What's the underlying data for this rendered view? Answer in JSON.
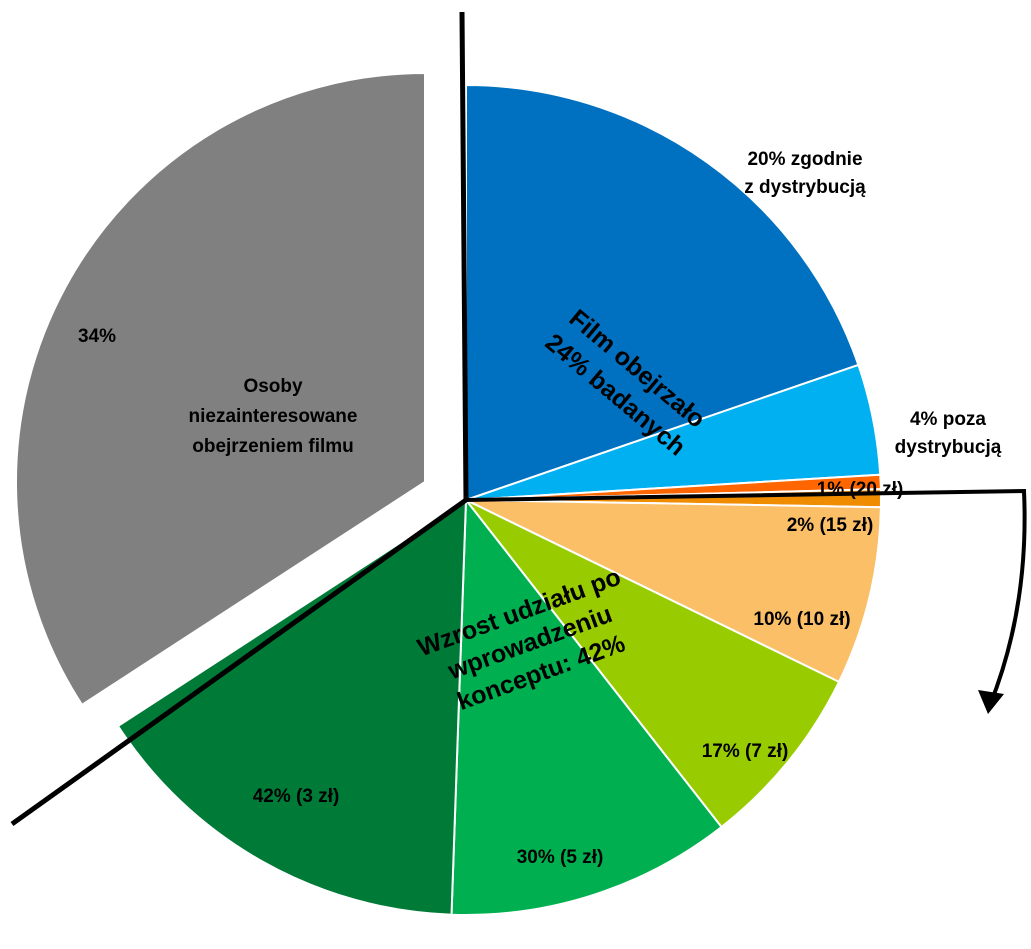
{
  "chart_data": {
    "type": "pie",
    "title": "",
    "slices": [
      {
        "key": "dist",
        "label": "20% zgodnie z dystrybucją",
        "lines": [
          "20% zgodnie",
          "z dystrybucją"
        ],
        "value": 20,
        "color": "#0070C0"
      },
      {
        "key": "outside",
        "label": "4% poza dystrybucją",
        "lines": [
          "4% poza",
          "dystrybucją"
        ],
        "value": 4,
        "color": "#00B0F0"
      },
      {
        "key": "p20",
        "label": "1% (20 zł)",
        "lines": [
          "1% (20 zł)"
        ],
        "value": 1,
        "color": "#FF6600"
      },
      {
        "key": "p15",
        "label": "2% (15 zł)",
        "lines": [
          "2% (15 zł)"
        ],
        "value": 2,
        "color": "#F08C00"
      },
      {
        "key": "p10",
        "label": "10% (10 zł)",
        "lines": [
          "10% (10 zł)"
        ],
        "value": 10,
        "color": "#FBBF67"
      },
      {
        "key": "p7",
        "label": "17% (7 zł)",
        "lines": [
          "17% (7 zł)"
        ],
        "value": 17,
        "color": "#99CC00"
      },
      {
        "key": "p5",
        "label": "30% (5 zł)",
        "lines": [
          "30% (5 zł)"
        ],
        "value": 30,
        "color": "#00B050"
      },
      {
        "key": "p3",
        "label": "42% (3 zł)",
        "lines": [
          "42% (3 zł)"
        ],
        "value": 42,
        "color": "#007A37"
      },
      {
        "key": "uninterested",
        "label": "34%",
        "lines": [
          "34%"
        ],
        "value": 34,
        "color": "#808080"
      }
    ],
    "annotations": {
      "uninterested_caption": [
        "Osoby",
        "niezainteresowane",
        "obejrzeniem filmu"
      ],
      "watched_caption": [
        "Film obejrzało",
        "24% badanych"
      ],
      "growth_caption": [
        "Wzrost udziału po",
        "wprowadzeniu",
        "konceptu: 42%"
      ]
    }
  }
}
